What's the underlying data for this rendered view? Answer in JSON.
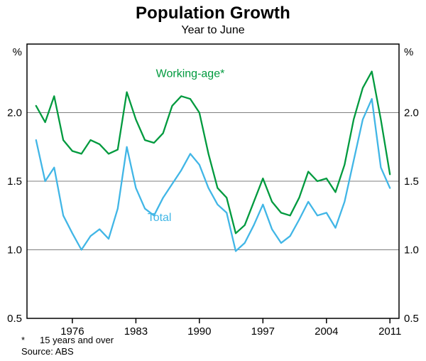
{
  "footnotes": {
    "note_marker": "*",
    "note_text": "15 years and over",
    "source": "Source: ABS"
  },
  "chart_data": {
    "type": "line",
    "title": "Population Growth",
    "subtitle": "Year to June",
    "y_unit": "%",
    "grid": true,
    "legend_position": "inline-annotations",
    "xlim": [
      1971,
      2012
    ],
    "ylim": [
      0.5,
      2.5
    ],
    "xticks": [
      1976,
      1983,
      1990,
      1997,
      2004,
      2011
    ],
    "yticks": [
      0.5,
      1.0,
      1.5,
      2.0
    ],
    "x": [
      1972,
      1973,
      1974,
      1975,
      1976,
      1977,
      1978,
      1979,
      1980,
      1981,
      1982,
      1983,
      1984,
      1985,
      1986,
      1987,
      1988,
      1989,
      1990,
      1991,
      1992,
      1993,
      1994,
      1995,
      1996,
      1997,
      1998,
      1999,
      2000,
      2001,
      2002,
      2003,
      2004,
      2005,
      2006,
      2007,
      2008,
      2009,
      2010,
      2011
    ],
    "series": [
      {
        "name": "Working-age*",
        "color": "#009A3E",
        "values": [
          2.05,
          1.93,
          2.12,
          1.8,
          1.72,
          1.7,
          1.8,
          1.77,
          1.7,
          1.73,
          2.15,
          1.95,
          1.8,
          1.78,
          1.85,
          2.05,
          2.12,
          2.1,
          2.0,
          1.7,
          1.45,
          1.38,
          1.12,
          1.18,
          1.35,
          1.52,
          1.35,
          1.27,
          1.25,
          1.38,
          1.57,
          1.5,
          1.52,
          1.42,
          1.62,
          1.95,
          2.18,
          2.3,
          1.95,
          1.55
        ]
      },
      {
        "name": "Total",
        "color": "#41B6E6",
        "values": [
          1.8,
          1.5,
          1.6,
          1.25,
          1.12,
          1.0,
          1.1,
          1.15,
          1.08,
          1.3,
          1.75,
          1.45,
          1.3,
          1.25,
          1.38,
          1.48,
          1.58,
          1.7,
          1.62,
          1.45,
          1.33,
          1.27,
          0.99,
          1.05,
          1.18,
          1.33,
          1.15,
          1.05,
          1.1,
          1.22,
          1.35,
          1.25,
          1.27,
          1.16,
          1.35,
          1.65,
          1.95,
          2.1,
          1.6,
          1.45
        ]
      }
    ],
    "annotations": [
      {
        "text": "Working-age*",
        "x": 1989.0,
        "y": 2.26,
        "series": 0
      },
      {
        "text": "Total",
        "x": 1985.6,
        "y": 1.21,
        "series": 1
      }
    ]
  }
}
